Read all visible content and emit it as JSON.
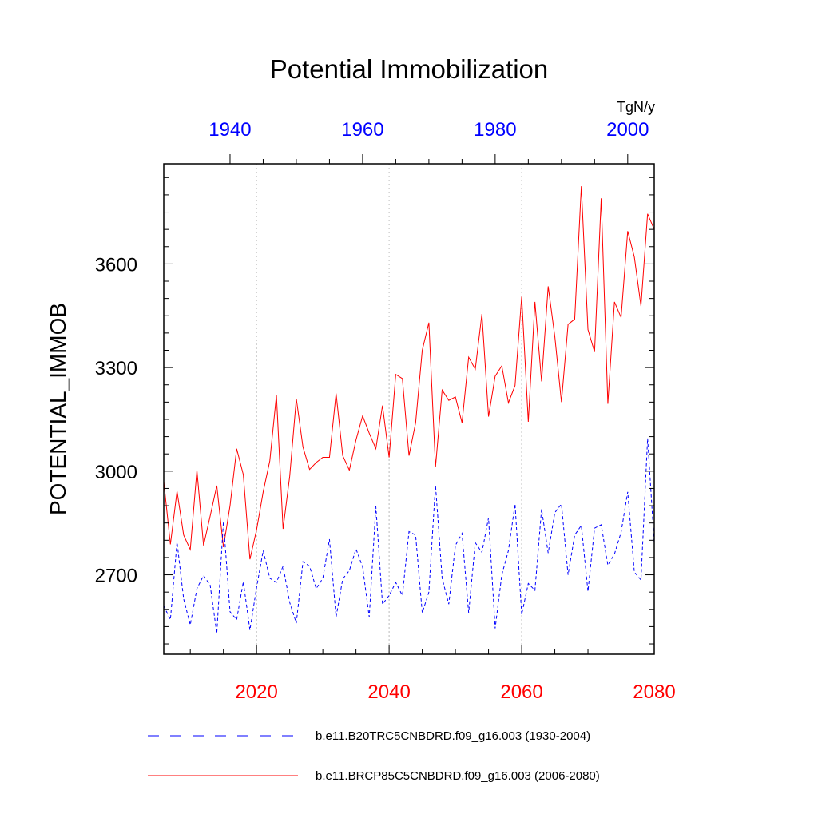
{
  "chart_data": {
    "type": "line",
    "title": "Potential Immobilization",
    "units_label": "TgN/y",
    "ylabel": "POTENTIAL_IMMOB",
    "ylim": [
      2470,
      3890
    ],
    "yticks": [
      2700,
      3000,
      3300,
      3600
    ],
    "xlim_bottom": [
      2006,
      2080
    ],
    "xticks_bottom": [
      2020,
      2040,
      2060,
      2080
    ],
    "xlim_top": [
      1930,
      2004
    ],
    "xticks_top": [
      1940,
      1960,
      1980,
      2000
    ],
    "grid_x": [
      2020,
      2040,
      2060
    ],
    "series": [
      {
        "name": "b.e11.BRCP85C5CNBDRD.f09_g16.003 (2006-2080)",
        "color": "#ff0000",
        "dash": "solid",
        "axis": "bottom",
        "x_start": 2006,
        "values": [
          2970,
          2788,
          2942,
          2815,
          2773,
          3003,
          2785,
          2870,
          2958,
          2780,
          2900,
          3065,
          2990,
          2745,
          2830,
          2940,
          3030,
          3220,
          2833,
          2985,
          3210,
          3070,
          3005,
          3025,
          3040,
          3040,
          3225,
          3045,
          3003,
          3090,
          3160,
          3110,
          3065,
          3190,
          3040,
          3280,
          3268,
          3045,
          3140,
          3350,
          3430,
          3012,
          3235,
          3205,
          3215,
          3140,
          3330,
          3295,
          3455,
          3158,
          3275,
          3305,
          3198,
          3248,
          3505,
          3143,
          3490,
          3260,
          3535,
          3390,
          3200,
          3425,
          3440,
          3825,
          3410,
          3345,
          3790,
          3195,
          3490,
          3445,
          3695,
          3620,
          3478,
          3745,
          3700
        ]
      },
      {
        "name": "b.e11.B20TRC5CNBDRD.f09_g16.003 (1930-2004)",
        "color": "#0000ff",
        "dash": "dashed",
        "axis": "bottom",
        "x_start": 2006,
        "values": [
          2610,
          2570,
          2795,
          2630,
          2555,
          2660,
          2698,
          2670,
          2530,
          2855,
          2593,
          2570,
          2680,
          2540,
          2663,
          2770,
          2690,
          2678,
          2725,
          2620,
          2560,
          2738,
          2725,
          2660,
          2690,
          2803,
          2578,
          2688,
          2712,
          2775,
          2723,
          2578,
          2898,
          2615,
          2640,
          2678,
          2640,
          2825,
          2815,
          2590,
          2650,
          2960,
          2690,
          2615,
          2785,
          2820,
          2590,
          2793,
          2765,
          2865,
          2545,
          2700,
          2770,
          2905,
          2585,
          2675,
          2655,
          2890,
          2763,
          2880,
          2905,
          2700,
          2815,
          2843,
          2652,
          2835,
          2845,
          2728,
          2760,
          2823,
          2940,
          2708,
          2685,
          3095,
          2790
        ]
      }
    ],
    "legend": [
      {
        "label": "b.e11.B20TRC5CNBDRD.f09_g16.003 (1930-2004)",
        "color": "#0000ff",
        "dash": "dashed"
      },
      {
        "label": "b.e11.BRCP85C5CNBDRD.f09_g16.003 (2006-2080)",
        "color": "#ff0000",
        "dash": "solid"
      }
    ]
  }
}
